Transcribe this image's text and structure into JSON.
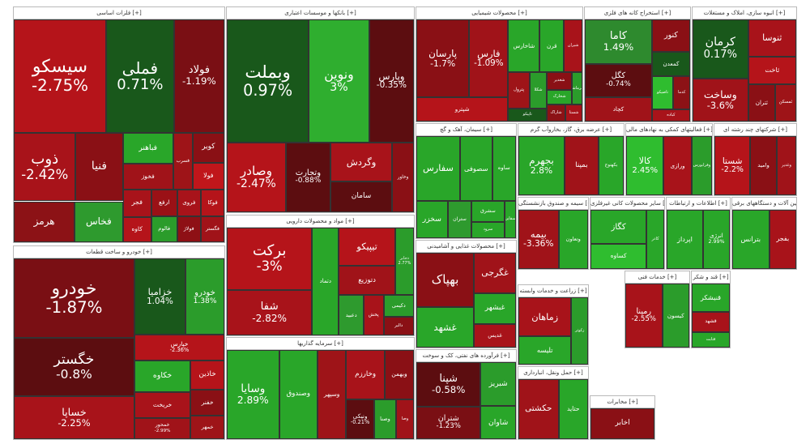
{
  "chart_data": {
    "type": "treemap",
    "colors": {
      "dark_red": "#5c0d10",
      "red": "#9e0d15",
      "bright_red": "#cc1a1e",
      "dark_green": "#175e17",
      "green": "#29a629",
      "bright_green": "#2fbd2f",
      "mid": "#7a1a18"
    },
    "sectors": [
      {
        "title": "فلزات اساسی [+]",
        "stocks": [
          {
            "name": "سیسکو",
            "change": "-2.75%",
            "color": "#b5141a"
          },
          {
            "name": "فملی",
            "change": "0.71%",
            "color": "#19581b"
          },
          {
            "name": "فولاد",
            "change": "-1.19%",
            "color": "#7a0f14"
          },
          {
            "name": "ذوب",
            "change": "-2.42%",
            "color": "#a8131a"
          },
          {
            "name": "فنیا",
            "change": "",
            "color": "#8a1015"
          },
          {
            "name": "هرمز",
            "change": "",
            "color": "#8c1216"
          },
          {
            "name": "فخاس",
            "change": "",
            "color": "#2e9a2e"
          },
          {
            "name": "فباهنر",
            "change": "",
            "color": "#29a629"
          },
          {
            "name": "فخوز",
            "change": "",
            "color": "#a01319"
          },
          {
            "name": "فسرب",
            "change": "",
            "color": "#9e1418"
          },
          {
            "name": "کویر",
            "change": "",
            "color": "#8a1015"
          },
          {
            "name": "فولا",
            "change": "",
            "color": "#c0161b"
          },
          {
            "name": "فجر",
            "change": "",
            "color": "#a8131a"
          },
          {
            "name": "کاوه",
            "change": "",
            "color": "#b5141a"
          },
          {
            "name": "ارفع",
            "change": "",
            "color": "#9a1116"
          },
          {
            "name": "فالوم",
            "change": "",
            "color": "#2b9c2b"
          },
          {
            "name": "فروی",
            "change": "",
            "color": "#a8131a"
          },
          {
            "name": "فوکا",
            "change": "",
            "color": "#b5141a"
          },
          {
            "name": "فولاژ",
            "change": "",
            "color": "#8e1015"
          },
          {
            "name": "فگستر",
            "change": "",
            "color": "#a01319"
          }
        ]
      },
      {
        "title": "بانکها و موسسات اعتباری [+]",
        "stocks": [
          {
            "name": "وبملت",
            "change": "0.97%",
            "color": "#19581b"
          },
          {
            "name": "ونوین",
            "change": "3%",
            "color": "#2fae2f"
          },
          {
            "name": "وپارس",
            "change": "-0.35%",
            "color": "#5c0d10"
          },
          {
            "name": "وصادر",
            "change": "-2.47%",
            "color": "#b5141a"
          },
          {
            "name": "وتجارت",
            "change": "-0.88%",
            "color": "#5c0d10"
          },
          {
            "name": "وگردش",
            "change": "",
            "color": "#a8131a"
          },
          {
            "name": "سامان",
            "change": "",
            "color": "#5c0d10"
          },
          {
            "name": "وخاور",
            "change": "",
            "color": "#8a1015"
          }
        ]
      },
      {
        "title": "محصولات شیمیایی [+]",
        "stocks": [
          {
            "name": "پارسان",
            "change": "-1.7%",
            "color": "#8a1015"
          },
          {
            "name": "فارس",
            "change": "-1.09%",
            "color": "#a01319"
          },
          {
            "name": "شپترو",
            "change": "",
            "color": "#b5141a"
          },
          {
            "name": "شاخارس",
            "change": "",
            "color": "#29a629"
          },
          {
            "name": "قرن",
            "change": "",
            "color": "#29a629"
          },
          {
            "name": "شیران",
            "change": "",
            "color": "#a8131a"
          },
          {
            "name": "پترول",
            "change": "",
            "color": "#9e1418"
          },
          {
            "name": "شکلا",
            "change": "",
            "color": "#2b9c2b"
          },
          {
            "name": "تاپیکو",
            "change": "",
            "color": "#19581b"
          },
          {
            "name": "شغدیر",
            "change": "",
            "color": "#8a1015"
          },
          {
            "name": "شخارک",
            "change": "",
            "color": "#29a629"
          },
          {
            "name": "کرماشا",
            "change": "",
            "color": "#2b9c2b"
          },
          {
            "name": "شاراک",
            "change": "",
            "color": "#8c1216"
          },
          {
            "name": "شستا",
            "change": "",
            "color": "#a8131a"
          }
        ]
      },
      {
        "title": "استخراج کانه های فلزی [+]",
        "stocks": [
          {
            "name": "کاما",
            "change": "1.49%",
            "color": "#2e8a2e"
          },
          {
            "name": "کگل",
            "change": "-0.74%",
            "color": "#5c0d10"
          },
          {
            "name": "کچاد",
            "change": "",
            "color": "#a01319"
          },
          {
            "name": "کنور",
            "change": "",
            "color": "#8a1015"
          },
          {
            "name": "کمعدن",
            "change": "",
            "color": "#19581b"
          },
          {
            "name": "تاصیکو",
            "change": "",
            "color": "#2fbd2f"
          },
          {
            "name": "کدما",
            "change": "",
            "color": "#8c1216"
          },
          {
            "name": "کباده",
            "change": "",
            "color": "#a8131a"
          }
        ]
      },
      {
        "title": "انبوه سازی، املاک و مستغلات [+]",
        "stocks": [
          {
            "name": "کرمان",
            "change": "0.17%",
            "color": "#19581b"
          },
          {
            "name": "وساخت",
            "change": "-3.6%",
            "color": "#a01319"
          },
          {
            "name": "ثنوسا",
            "change": "",
            "color": "#a8131a"
          },
          {
            "name": "ثاخت",
            "change": "",
            "color": "#b5141a"
          },
          {
            "name": "ثتران",
            "change": "",
            "color": "#8a1015"
          },
          {
            "name": "ثمسکن",
            "change": "",
            "color": "#9e1418"
          }
        ]
      },
      {
        "title": "خودرو و ساخت قطعات [+]",
        "stocks": [
          {
            "name": "خودرو",
            "change": "-1.87%",
            "color": "#7a0f14"
          },
          {
            "name": "خگستر",
            "change": "-0.8%",
            "color": "#5c0d10"
          },
          {
            "name": "خساپا",
            "change": "-2.25%",
            "color": "#a8131a"
          },
          {
            "name": "خزامیا",
            "change": "1.04%",
            "color": "#19581b"
          },
          {
            "name": "خودرو",
            "change": "1.38%",
            "color": "#2b9c2b"
          },
          {
            "name": "خپارس",
            "change": "-2.36%",
            "color": "#b5141a"
          },
          {
            "name": "خکاوه",
            "change": "",
            "color": "#29a629"
          },
          {
            "name": "خریخت",
            "change": "",
            "color": "#a8131a"
          },
          {
            "name": "خمحور",
            "change": "-2.99%",
            "color": "#a01319"
          },
          {
            "name": "خاذین",
            "change": "",
            "color": "#b5141a"
          },
          {
            "name": "خفنر",
            "change": "",
            "color": "#8a1015"
          },
          {
            "name": "خمهر",
            "change": "",
            "color": "#9e1418"
          }
        ]
      },
      {
        "title": "مواد و محصولات دارویی [+]",
        "stocks": [
          {
            "name": "برکت",
            "change": "-3%",
            "color": "#b5141a"
          },
          {
            "name": "شفا",
            "change": "-2.82%",
            "color": "#a8131a"
          },
          {
            "name": "دتماد",
            "change": "",
            "color": "#29a629"
          },
          {
            "name": "تیپیکو",
            "change": "",
            "color": "#b5141a"
          },
          {
            "name": "دتوزیع",
            "change": "",
            "color": "#a01319"
          },
          {
            "name": "دجابر",
            "change": "2.77%",
            "color": "#2b9c2b"
          },
          {
            "name": "دعبید",
            "change": "",
            "color": "#2e9a2e"
          },
          {
            "name": "پخش",
            "change": "",
            "color": "#a8131a"
          },
          {
            "name": "دکیمی",
            "change": "",
            "color": "#2b9c2b"
          },
          {
            "name": "دالبر",
            "change": "",
            "color": "#8a1015"
          }
        ]
      },
      {
        "title": "سرمایه گذاریها [+]",
        "stocks": [
          {
            "name": "وسایا",
            "change": "2.89%",
            "color": "#29a629"
          },
          {
            "name": "وصندوق",
            "change": "",
            "color": "#29a629"
          },
          {
            "name": "وسپهر",
            "change": "",
            "color": "#9e1418"
          },
          {
            "name": "وخارزم",
            "change": "",
            "color": "#a8131a"
          },
          {
            "name": "وبهمن",
            "change": "",
            "color": "#8a1015"
          },
          {
            "name": "ونیکی",
            "change": "-0.21%",
            "color": "#5c0d10"
          },
          {
            "name": "وصنا",
            "change": "",
            "color": "#2b9c2b"
          },
          {
            "name": "وصا",
            "change": "",
            "color": "#a01319"
          }
        ]
      },
      {
        "title": "سیمان، آهک و گچ [+]",
        "stocks": [
          {
            "name": "سفارس",
            "change": "",
            "color": "#29a629"
          },
          {
            "name": "سصوفی",
            "change": "",
            "color": "#29a629"
          },
          {
            "name": "ساوه",
            "change": "",
            "color": "#29a629"
          },
          {
            "name": "سخزر",
            "change": "",
            "color": "#29a629"
          },
          {
            "name": "ستران",
            "change": "",
            "color": "#2e9a2e"
          },
          {
            "name": "سشرق",
            "change": "",
            "color": "#29a629"
          },
          {
            "name": "سرود",
            "change": "",
            "color": "#29a629"
          },
          {
            "name": "سقاین",
            "change": "",
            "color": "#29a629"
          }
        ]
      },
      {
        "title": "عرضه برق، گاز، بخاروآب گرم [+]",
        "stocks": [
          {
            "name": "بجهرم",
            "change": "2.8%",
            "color": "#29a629"
          },
          {
            "name": "بمپنا",
            "change": "",
            "color": "#a01319"
          },
          {
            "name": "بکهنوج",
            "change": "",
            "color": "#29a629"
          }
        ]
      },
      {
        "title": "فعالیتهای کمکی به نهادهای مالی [+]",
        "stocks": [
          {
            "name": "کالا",
            "change": "2.45%",
            "color": "#2fbd2f"
          },
          {
            "name": "ورازی",
            "change": "",
            "color": "#a8131a"
          },
          {
            "name": "وفرابورس",
            "change": "",
            "color": "#2b9c2b"
          }
        ]
      },
      {
        "title": "شرکتهای چند رشته ای [+]",
        "stocks": [
          {
            "name": "شستا",
            "change": "-2.2%",
            "color": "#b5141a"
          },
          {
            "name": "وامید",
            "change": "",
            "color": "#8a1015"
          },
          {
            "name": "وغدیر",
            "change": "",
            "color": "#a01319"
          }
        ]
      },
      {
        "title": "محصولات غذایی و آشامیدنی [+]",
        "stocks": [
          {
            "name": "بهپاک",
            "change": "",
            "color": "#8a1015"
          },
          {
            "name": "غشهد",
            "change": "",
            "color": "#29a629"
          },
          {
            "name": "غگرجی",
            "change": "",
            "color": "#a01319"
          },
          {
            "name": "غبشهر",
            "change": "",
            "color": "#29a629"
          },
          {
            "name": "غدیس",
            "change": "",
            "color": "#a8131a"
          }
        ]
      },
      {
        "title": "قند و شکر [+]",
        "stocks": [
          {
            "name": "قنیشکر",
            "change": "",
            "color": "#29a629"
          },
          {
            "name": "قشهد",
            "change": "",
            "color": "#a8131a"
          },
          {
            "name": "قثابت",
            "change": "",
            "color": "#29a629"
          }
        ]
      },
      {
        "title": "خدمات فنی [+]",
        "stocks": [
          {
            "name": "رمپنا",
            "change": "-2.55%",
            "color": "#a8131a"
          },
          {
            "name": "کیسون",
            "change": "",
            "color": "#2b9c2b"
          }
        ]
      },
      {
        "title": "ماشین آلات و دستگاههای برقی [+]",
        "stocks": [
          {
            "name": "بترانس",
            "change": "",
            "color": "#29a629"
          },
          {
            "name": "بفجر",
            "change": "",
            "color": "#a8131a"
          }
        ]
      },
      {
        "title": "سایر محصولات کانی غیرفلزی [+]",
        "stocks": [
          {
            "name": "کگاز",
            "change": "",
            "color": "#29a629"
          },
          {
            "name": "کساوه",
            "change": "",
            "color": "#2fbd2f"
          },
          {
            "name": "کاذر",
            "change": "",
            "color": "#29a629"
          }
        ]
      },
      {
        "title": "اطلاعات و ارتباطات [+]",
        "stocks": [
          {
            "name": "اپرداز",
            "change": "",
            "color": "#29a629"
          },
          {
            "name": "انرژی",
            "change": "2.99%",
            "color": "#29a629"
          }
        ]
      },
      {
        "title": "سیمه و صندوق بازنشستگی [+]",
        "stocks": [
          {
            "name": "بیمه",
            "change": "-3.36%",
            "color": "#a01319"
          },
          {
            "name": "وتعاون",
            "change": "",
            "color": "#29a629"
          }
        ]
      },
      {
        "title": "زراعت و خدمات وابسته [+]",
        "stocks": [
          {
            "name": "زماهان",
            "change": "",
            "color": "#a8131a"
          },
          {
            "name": "تلیسه",
            "change": "",
            "color": "#29a629"
          },
          {
            "name": "زکوثر",
            "change": "",
            "color": "#2b9c2b"
          }
        ]
      },
      {
        "title": "فرآورده های نفتی، کک و سوخت [+]",
        "stocks": [
          {
            "name": "شپنا",
            "change": "-0.58%",
            "color": "#5c0d10"
          },
          {
            "name": "شتران",
            "change": "-1.23%",
            "color": "#7a0f14"
          },
          {
            "name": "شبریز",
            "change": "",
            "color": "#2b9c2b"
          },
          {
            "name": "شاوان",
            "change": "",
            "color": "#29a629"
          }
        ]
      },
      {
        "title": "حمل ونقل، انبارداری [+]",
        "stocks": [
          {
            "name": "حکشتی",
            "change": "",
            "color": "#a01319"
          },
          {
            "name": "حتاید",
            "change": "",
            "color": "#29a629"
          }
        ]
      },
      {
        "title": "مخابرات [+]",
        "stocks": [
          {
            "name": "اخابر",
            "change": "",
            "color": "#8a1015"
          }
        ]
      }
    ]
  }
}
